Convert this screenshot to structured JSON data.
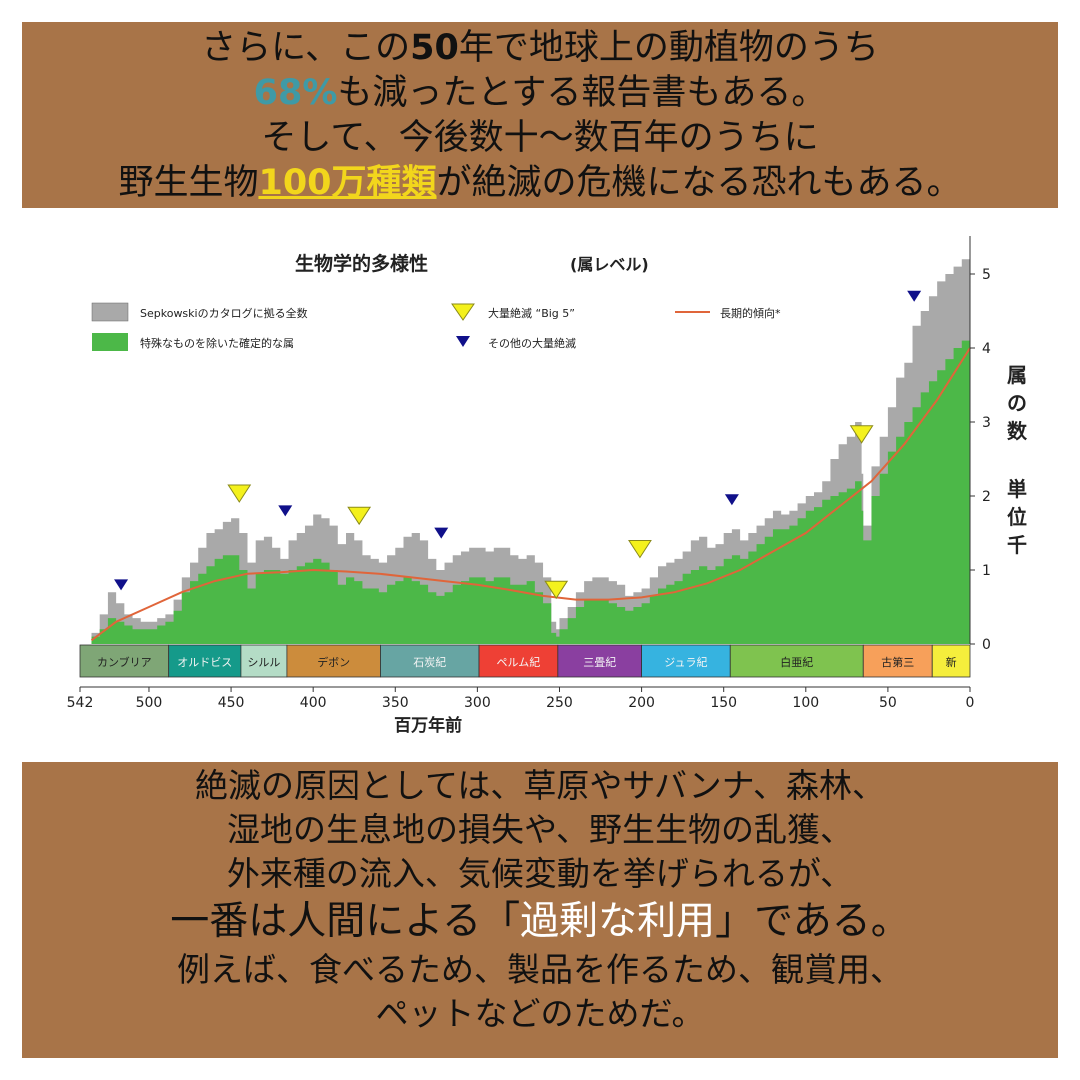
{
  "top_text": {
    "line1": {
      "a": "さらに、この",
      "b": "50",
      "c": "年で地球上の動植物のうち"
    },
    "line2": {
      "a": "68%",
      "b": "も減ったとする報告書もある。"
    },
    "line3": "そして、今後数十〜数百年のうちに",
    "line4": {
      "a": "野生生物",
      "b": "100万種類",
      "c": "が絶滅の危機になる恐れもある。"
    }
  },
  "bottom_text": {
    "line1": "絶滅の原因としては、草原やサバンナ、森林、",
    "line2": "湿地の生息地の損失や、野生生物の乱獲、",
    "line3": "外来種の流入、気候変動を挙げられるが、",
    "line4": {
      "a": "一番は人間による「",
      "b": "過剰な利用",
      "c": "」である。"
    },
    "line5": "例えば、食べるため、製品を作るため、観賞用、",
    "line6": "ペットなどのためだ。"
  },
  "chart_data": {
    "type": "area",
    "title": "生物学的多様性",
    "subtitle": "(属レベル)",
    "xlabel": "百万年前",
    "ylabel": [
      "属",
      "の",
      "数",
      "単",
      "位",
      "千"
    ],
    "xlim": [
      542,
      0
    ],
    "ylim": [
      0,
      5.5
    ],
    "x_ticks": [
      542,
      500,
      450,
      400,
      350,
      300,
      250,
      200,
      150,
      100,
      50,
      0
    ],
    "y_ticks": [
      0,
      1,
      2,
      3,
      4,
      5
    ],
    "legend": {
      "total": "Sepkowskiのカタログに拠る全数",
      "filtered": "特殊なものを除いた確定的な属",
      "big5": "大量絶滅 “Big 5”",
      "other": "その他の大量絶滅",
      "trend": "長期的傾向*"
    },
    "colors": {
      "total": "#a9a9a9",
      "filtered": "#4cb848",
      "trend": "#e0653a",
      "big5": "#f4f11c",
      "other": "#10108a"
    },
    "series": [
      {
        "name": "Sepkowskiのカタログに拠る全数",
        "x": [
          542,
          535,
          530,
          525,
          520,
          515,
          510,
          505,
          500,
          495,
          490,
          485,
          480,
          475,
          470,
          465,
          460,
          455,
          450,
          445,
          440,
          435,
          430,
          425,
          420,
          415,
          410,
          405,
          400,
          395,
          390,
          385,
          380,
          375,
          370,
          365,
          360,
          355,
          350,
          345,
          340,
          335,
          330,
          325,
          320,
          315,
          310,
          305,
          300,
          295,
          290,
          285,
          280,
          275,
          270,
          265,
          260,
          255,
          252,
          250,
          245,
          240,
          235,
          230,
          225,
          220,
          215,
          210,
          205,
          200,
          195,
          190,
          185,
          180,
          175,
          170,
          165,
          160,
          155,
          150,
          145,
          140,
          135,
          130,
          125,
          120,
          115,
          110,
          105,
          100,
          95,
          90,
          85,
          80,
          75,
          70,
          66,
          65,
          60,
          55,
          50,
          45,
          40,
          35,
          30,
          25,
          20,
          15,
          10,
          5,
          0
        ],
        "y": [
          0,
          0.15,
          0.4,
          0.7,
          0.55,
          0.4,
          0.35,
          0.3,
          0.3,
          0.35,
          0.4,
          0.6,
          0.9,
          1.1,
          1.3,
          1.5,
          1.55,
          1.65,
          1.7,
          1.5,
          1.1,
          1.4,
          1.45,
          1.3,
          1.15,
          1.4,
          1.5,
          1.6,
          1.75,
          1.7,
          1.6,
          1.35,
          1.5,
          1.4,
          1.2,
          1.15,
          1.1,
          1.2,
          1.3,
          1.45,
          1.5,
          1.4,
          1.15,
          1.0,
          1.1,
          1.2,
          1.25,
          1.3,
          1.3,
          1.25,
          1.3,
          1.3,
          1.2,
          1.15,
          1.2,
          1.1,
          0.9,
          0.3,
          0.2,
          0.35,
          0.5,
          0.7,
          0.85,
          0.9,
          0.9,
          0.85,
          0.8,
          0.65,
          0.7,
          0.75,
          0.9,
          1.05,
          1.1,
          1.15,
          1.25,
          1.4,
          1.45,
          1.3,
          1.35,
          1.5,
          1.55,
          1.4,
          1.5,
          1.6,
          1.7,
          1.8,
          1.75,
          1.8,
          1.9,
          2.0,
          2.05,
          2.2,
          2.5,
          2.7,
          2.8,
          3.0,
          2.3,
          1.6,
          2.4,
          2.8,
          3.2,
          3.6,
          3.8,
          4.3,
          4.5,
          4.7,
          4.9,
          5.0,
          5.1,
          5.2,
          5.3
        ]
      },
      {
        "name": "特殊なものを除いた確定的な属",
        "x": [
          542,
          535,
          530,
          525,
          520,
          515,
          510,
          505,
          500,
          495,
          490,
          485,
          480,
          475,
          470,
          465,
          460,
          455,
          450,
          445,
          440,
          435,
          430,
          425,
          420,
          415,
          410,
          405,
          400,
          395,
          390,
          385,
          380,
          375,
          370,
          365,
          360,
          355,
          350,
          345,
          340,
          335,
          330,
          325,
          320,
          315,
          310,
          305,
          300,
          295,
          290,
          285,
          280,
          275,
          270,
          265,
          260,
          255,
          252,
          250,
          245,
          240,
          235,
          230,
          225,
          220,
          215,
          210,
          205,
          200,
          195,
          190,
          185,
          180,
          175,
          170,
          165,
          160,
          155,
          150,
          145,
          140,
          135,
          130,
          125,
          120,
          115,
          110,
          105,
          100,
          95,
          90,
          85,
          80,
          75,
          70,
          66,
          65,
          60,
          55,
          50,
          45,
          40,
          35,
          30,
          25,
          20,
          15,
          10,
          5,
          0
        ],
        "y": [
          0,
          0.1,
          0.2,
          0.35,
          0.3,
          0.25,
          0.2,
          0.2,
          0.2,
          0.25,
          0.3,
          0.45,
          0.7,
          0.85,
          0.95,
          1.05,
          1.15,
          1.2,
          1.2,
          1.0,
          0.75,
          0.95,
          1.0,
          1.0,
          0.95,
          1.0,
          1.05,
          1.1,
          1.15,
          1.1,
          1.0,
          0.8,
          0.9,
          0.85,
          0.75,
          0.75,
          0.7,
          0.8,
          0.85,
          0.9,
          0.85,
          0.8,
          0.7,
          0.65,
          0.7,
          0.8,
          0.85,
          0.9,
          0.9,
          0.85,
          0.9,
          0.9,
          0.8,
          0.8,
          0.85,
          0.7,
          0.55,
          0.15,
          0.1,
          0.2,
          0.35,
          0.5,
          0.6,
          0.6,
          0.6,
          0.55,
          0.5,
          0.45,
          0.5,
          0.55,
          0.65,
          0.75,
          0.8,
          0.85,
          0.95,
          1.0,
          1.05,
          1.0,
          1.05,
          1.15,
          1.2,
          1.15,
          1.25,
          1.35,
          1.45,
          1.55,
          1.55,
          1.6,
          1.7,
          1.8,
          1.85,
          1.95,
          2.0,
          2.05,
          2.1,
          2.2,
          1.8,
          1.4,
          2.0,
          2.3,
          2.6,
          2.8,
          3.0,
          3.2,
          3.4,
          3.55,
          3.7,
          3.85,
          4.0,
          4.1,
          4.2
        ]
      },
      {
        "name": "長期的傾向*",
        "x": [
          535,
          520,
          500,
          480,
          460,
          440,
          420,
          400,
          380,
          360,
          340,
          320,
          300,
          280,
          260,
          240,
          220,
          200,
          180,
          160,
          140,
          120,
          100,
          80,
          60,
          40,
          20,
          0
        ],
        "y": [
          0.05,
          0.3,
          0.5,
          0.7,
          0.85,
          0.95,
          0.97,
          1.0,
          0.98,
          0.95,
          0.9,
          0.85,
          0.8,
          0.73,
          0.65,
          0.6,
          0.6,
          0.63,
          0.7,
          0.82,
          1.0,
          1.25,
          1.5,
          1.85,
          2.2,
          2.7,
          3.3,
          4.0
        ]
      }
    ],
    "big5_events": [
      445,
      372,
      252,
      201,
      66
    ],
    "other_events": [
      517,
      417,
      322,
      145,
      34
    ],
    "periods": [
      {
        "name": "カンブリア",
        "start": 542,
        "end": 488,
        "color": "#7fa676"
      },
      {
        "name": "オルドビス",
        "start": 488,
        "end": 444,
        "color": "#159a8a"
      },
      {
        "name": "シルル",
        "start": 444,
        "end": 416,
        "color": "#b4dcc6"
      },
      {
        "name": "デボン",
        "start": 416,
        "end": 359,
        "color": "#cc8c3c"
      },
      {
        "name": "石炭紀",
        "start": 359,
        "end": 299,
        "color": "#67a5a3"
      },
      {
        "name": "ペルム紀",
        "start": 299,
        "end": 251,
        "color": "#ee4035"
      },
      {
        "name": "三畳紀",
        "start": 251,
        "end": 200,
        "color": "#8a3fa0"
      },
      {
        "name": "ジュラ紀",
        "start": 200,
        "end": 146,
        "color": "#36b3e0"
      },
      {
        "name": "白亜紀",
        "start": 146,
        "end": 65,
        "color": "#7fc34f"
      },
      {
        "name": "古第三",
        "start": 65,
        "end": 23,
        "color": "#f7a05a"
      },
      {
        "name": "新",
        "start": 23,
        "end": 0,
        "color": "#f5ee3c"
      }
    ]
  }
}
